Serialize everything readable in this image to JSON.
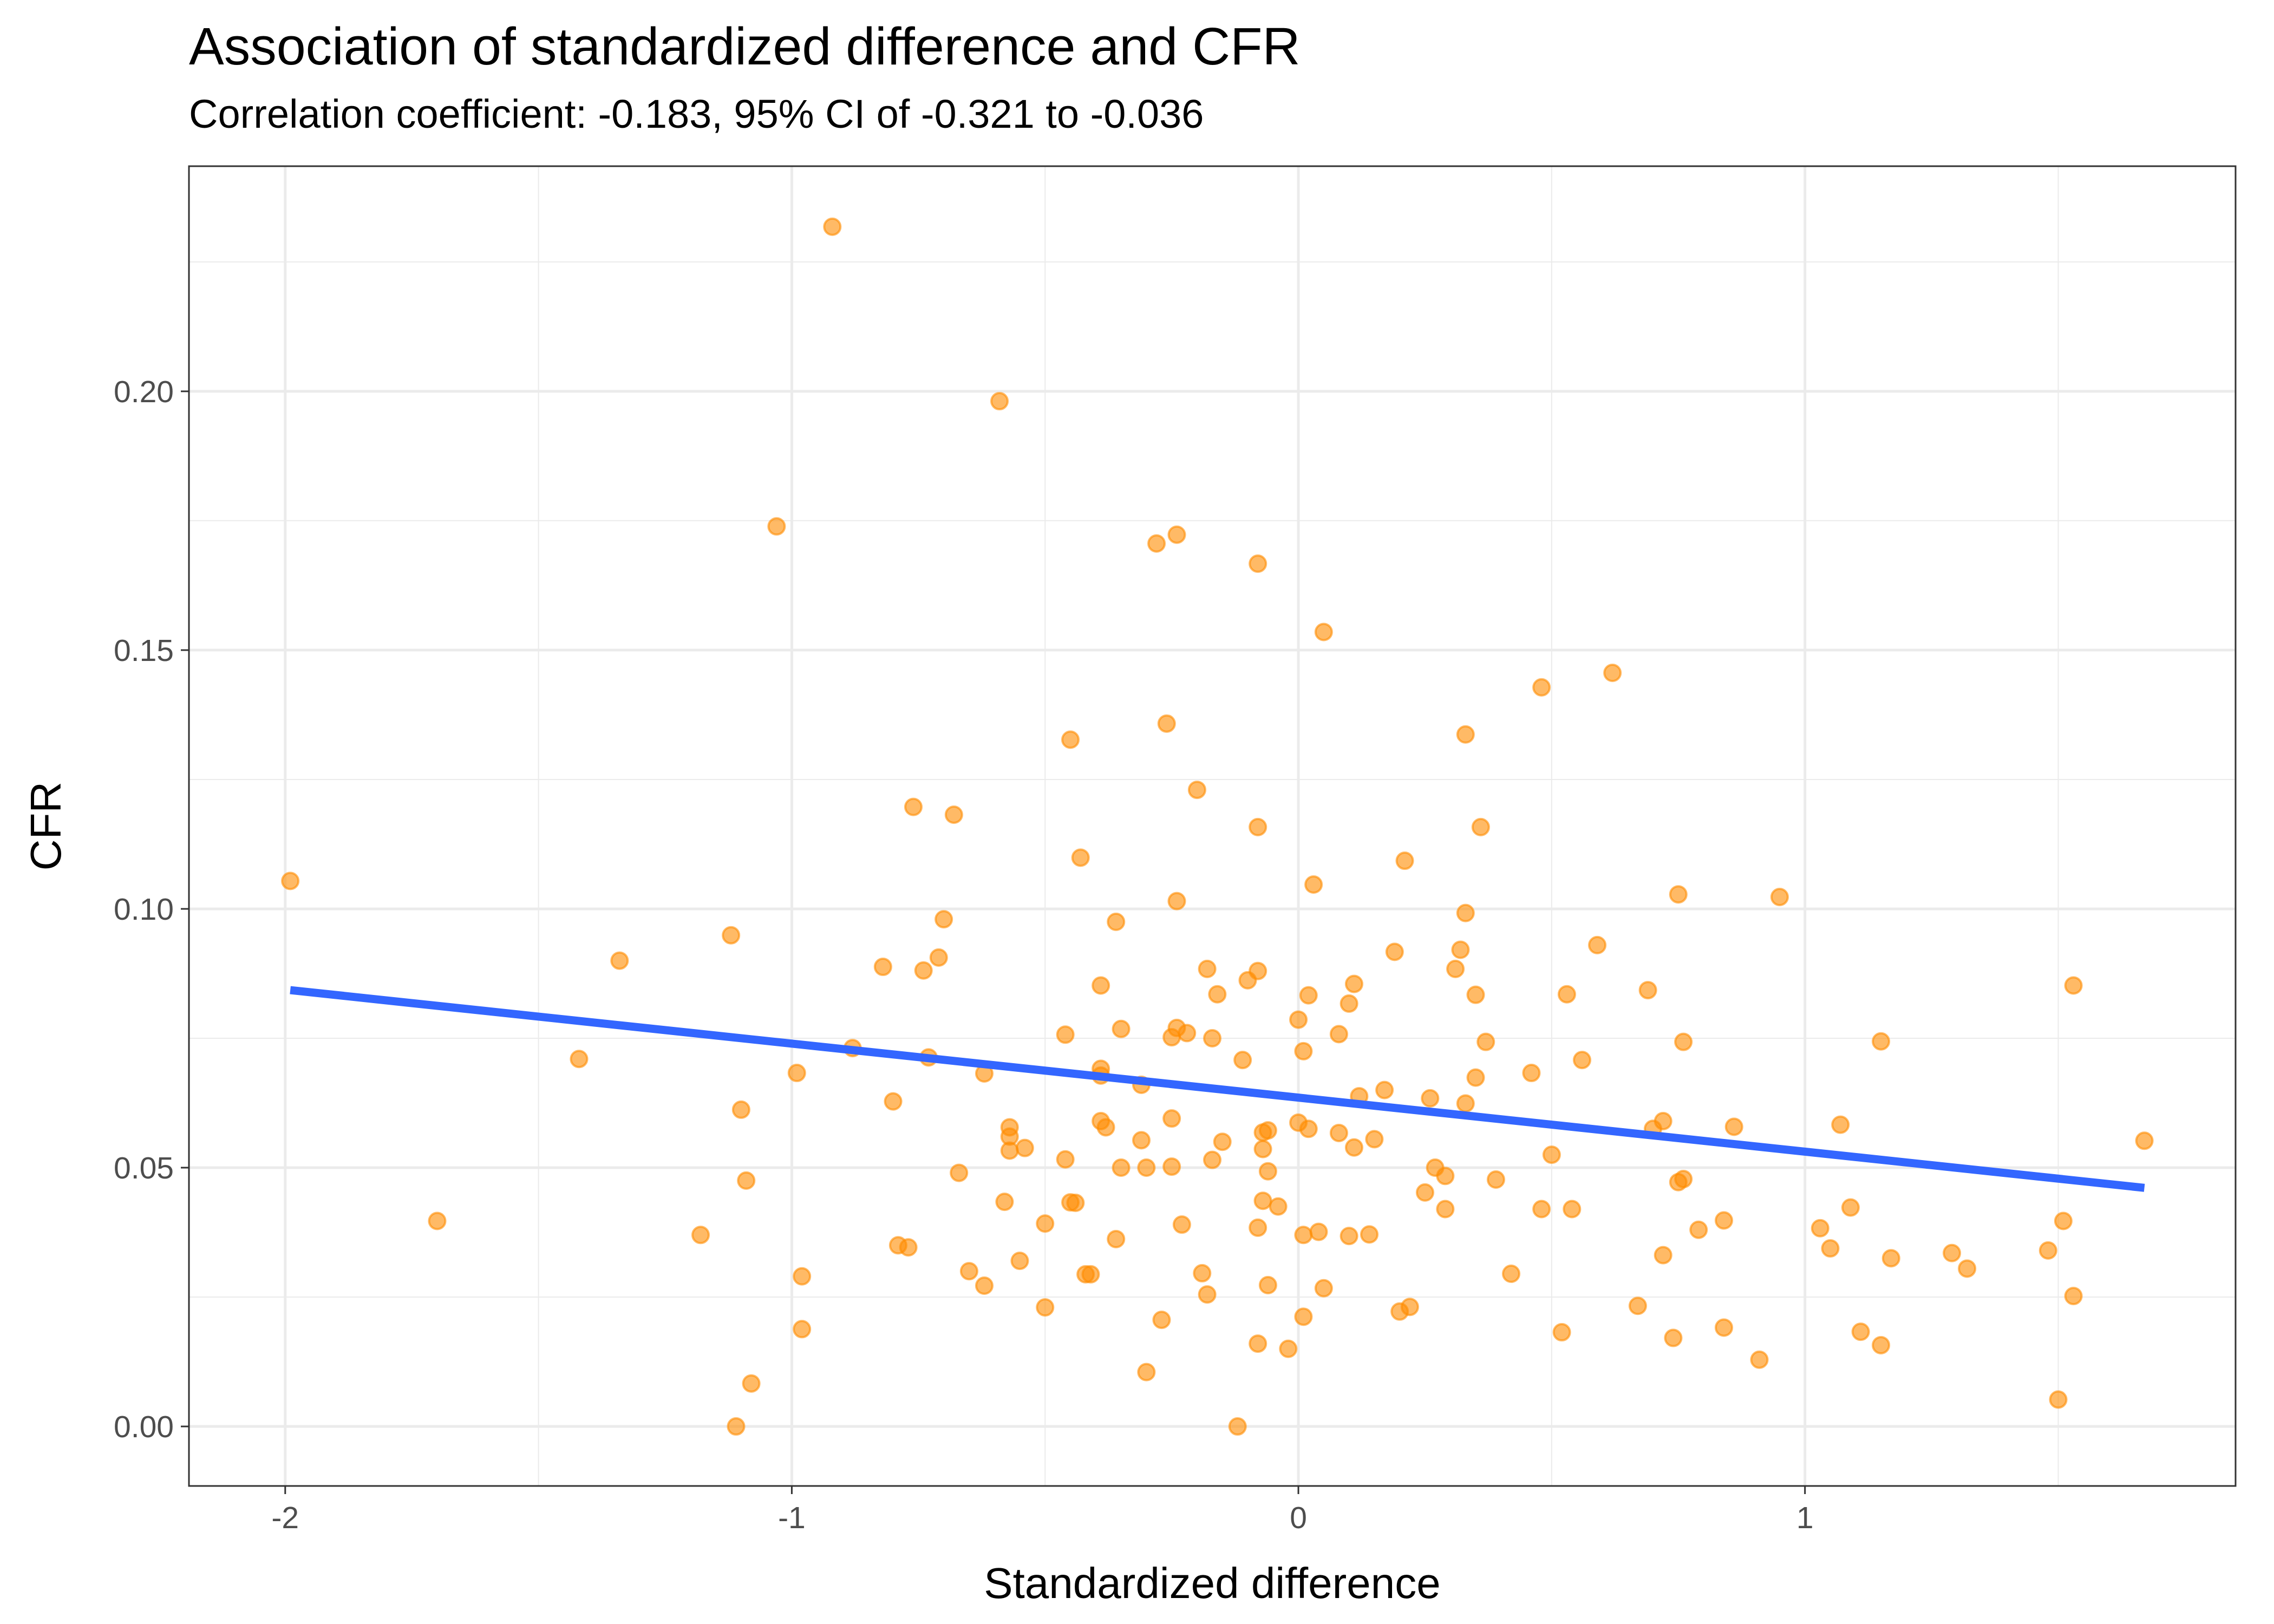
{
  "chart_data": {
    "type": "scatter",
    "title": "Association of standardized difference and CFR",
    "subtitle": "Correlation coefficient: -0.183, 95% CI of -0.321 to -0.036",
    "xlabel": "Standardized difference",
    "ylabel": "CFR",
    "xlim": [
      -2.19,
      1.85
    ],
    "ylim": [
      -0.0115,
      0.2435
    ],
    "x_ticks": [
      -2,
      -1,
      0,
      1
    ],
    "x_tick_labels": [
      "-2",
      "-1",
      "0",
      "1"
    ],
    "y_ticks": [
      0.0,
      0.05,
      0.1,
      0.15,
      0.2
    ],
    "y_tick_labels": [
      "0.00",
      "0.05",
      "0.10",
      "0.15",
      "0.20"
    ],
    "grid": true,
    "point_color": "#FF8C00",
    "line_color": "#3366FF",
    "fit_line": {
      "x": [
        -1.99,
        1.67
      ],
      "y": [
        0.0843,
        0.0461
      ]
    },
    "points": [
      [
        -1.99,
        0.1054
      ],
      [
        -1.7,
        0.0397
      ],
      [
        -1.42,
        0.071
      ],
      [
        -1.34,
        0.09
      ],
      [
        -1.18,
        0.037
      ],
      [
        -1.12,
        0.0949
      ],
      [
        -1.11,
        0.0
      ],
      [
        -1.1,
        0.0612
      ],
      [
        -1.09,
        0.0475
      ],
      [
        -1.08,
        0.0083
      ],
      [
        -1.03,
        0.1739
      ],
      [
        -0.99,
        0.0683
      ],
      [
        -0.98,
        0.029
      ],
      [
        -0.98,
        0.0188
      ],
      [
        -0.92,
        0.2318
      ],
      [
        -0.88,
        0.0731
      ],
      [
        -0.82,
        0.0888
      ],
      [
        -0.8,
        0.0628
      ],
      [
        -0.79,
        0.035
      ],
      [
        -0.77,
        0.0346
      ],
      [
        -0.76,
        0.1197
      ],
      [
        -0.74,
        0.0881
      ],
      [
        -0.73,
        0.0713
      ],
      [
        -0.71,
        0.0906
      ],
      [
        -0.7,
        0.098
      ],
      [
        -0.68,
        0.1182
      ],
      [
        -0.67,
        0.049
      ],
      [
        -0.65,
        0.03
      ],
      [
        -0.62,
        0.0682
      ],
      [
        -0.62,
        0.0272
      ],
      [
        -0.59,
        0.1981
      ],
      [
        -0.58,
        0.0434
      ],
      [
        -0.57,
        0.0578
      ],
      [
        -0.57,
        0.056
      ],
      [
        -0.57,
        0.0533
      ],
      [
        -0.55,
        0.032
      ],
      [
        -0.54,
        0.0538
      ],
      [
        -0.5,
        0.0392
      ],
      [
        -0.5,
        0.023
      ],
      [
        -0.46,
        0.0757
      ],
      [
        -0.46,
        0.0516
      ],
      [
        -0.45,
        0.0433
      ],
      [
        -0.45,
        0.1327
      ],
      [
        -0.44,
        0.0432
      ],
      [
        -0.43,
        0.1099
      ],
      [
        -0.42,
        0.0294
      ],
      [
        -0.41,
        0.0294
      ],
      [
        -0.39,
        0.0852
      ],
      [
        -0.39,
        0.059
      ],
      [
        -0.39,
        0.0691
      ],
      [
        -0.39,
        0.0678
      ],
      [
        -0.38,
        0.0578
      ],
      [
        -0.36,
        0.0975
      ],
      [
        -0.36,
        0.0362
      ],
      [
        -0.35,
        0.05
      ],
      [
        -0.35,
        0.0768
      ],
      [
        -0.31,
        0.066
      ],
      [
        -0.31,
        0.0553
      ],
      [
        -0.3,
        0.05
      ],
      [
        -0.3,
        0.0105
      ],
      [
        -0.28,
        0.1706
      ],
      [
        -0.27,
        0.0206
      ],
      [
        -0.26,
        0.1358
      ],
      [
        -0.25,
        0.0752
      ],
      [
        -0.25,
        0.0502
      ],
      [
        -0.25,
        0.0595
      ],
      [
        -0.24,
        0.1723
      ],
      [
        -0.24,
        0.077
      ],
      [
        -0.24,
        0.1015
      ],
      [
        -0.23,
        0.039
      ],
      [
        -0.22,
        0.076
      ],
      [
        -0.2,
        0.123
      ],
      [
        -0.19,
        0.0296
      ],
      [
        -0.18,
        0.0884
      ],
      [
        -0.18,
        0.0255
      ],
      [
        -0.17,
        0.075
      ],
      [
        -0.17,
        0.0515
      ],
      [
        -0.16,
        0.0835
      ],
      [
        -0.15,
        0.055
      ],
      [
        -0.12,
        0.0
      ],
      [
        -0.11,
        0.0708
      ],
      [
        -0.1,
        0.0862
      ],
      [
        -0.08,
        0.1667
      ],
      [
        -0.08,
        0.1158
      ],
      [
        -0.08,
        0.088
      ],
      [
        -0.08,
        0.0384
      ],
      [
        -0.08,
        0.016
      ],
      [
        -0.07,
        0.0568
      ],
      [
        -0.07,
        0.0536
      ],
      [
        -0.07,
        0.0436
      ],
      [
        -0.06,
        0.0273
      ],
      [
        -0.06,
        0.0572
      ],
      [
        -0.06,
        0.0493
      ],
      [
        -0.04,
        0.0425
      ],
      [
        -0.02,
        0.015
      ],
      [
        0.01,
        0.0725
      ],
      [
        0.0,
        0.0786
      ],
      [
        0.0,
        0.0587
      ],
      [
        0.01,
        0.037
      ],
      [
        0.01,
        0.0212
      ],
      [
        0.02,
        0.0833
      ],
      [
        0.02,
        0.0575
      ],
      [
        0.03,
        0.1047
      ],
      [
        0.04,
        0.0376
      ],
      [
        0.05,
        0.1535
      ],
      [
        0.05,
        0.0267
      ],
      [
        0.08,
        0.0758
      ],
      [
        0.08,
        0.0567
      ],
      [
        0.1,
        0.0368
      ],
      [
        0.1,
        0.0817
      ],
      [
        0.11,
        0.0539
      ],
      [
        0.11,
        0.0855
      ],
      [
        0.12,
        0.0638
      ],
      [
        0.14,
        0.0371
      ],
      [
        0.15,
        0.0555
      ],
      [
        0.17,
        0.065
      ],
      [
        0.19,
        0.0917
      ],
      [
        0.2,
        0.0222
      ],
      [
        0.21,
        0.1093
      ],
      [
        0.22,
        0.0231
      ],
      [
        0.25,
        0.0452
      ],
      [
        0.26,
        0.0634
      ],
      [
        0.27,
        0.05
      ],
      [
        0.29,
        0.0484
      ],
      [
        0.29,
        0.042
      ],
      [
        0.31,
        0.0884
      ],
      [
        0.32,
        0.0921
      ],
      [
        0.33,
        0.0992
      ],
      [
        0.33,
        0.1337
      ],
      [
        0.33,
        0.0624
      ],
      [
        0.35,
        0.0834
      ],
      [
        0.35,
        0.0674
      ],
      [
        0.36,
        0.1158
      ],
      [
        0.37,
        0.0743
      ],
      [
        0.39,
        0.0477
      ],
      [
        0.42,
        0.0295
      ],
      [
        0.46,
        0.0683
      ],
      [
        0.48,
        0.042
      ],
      [
        0.48,
        0.1428
      ],
      [
        0.5,
        0.0525
      ],
      [
        0.52,
        0.0182
      ],
      [
        0.53,
        0.0835
      ],
      [
        0.54,
        0.042
      ],
      [
        0.56,
        0.0708
      ],
      [
        0.59,
        0.093
      ],
      [
        0.62,
        0.1456
      ],
      [
        0.67,
        0.0233
      ],
      [
        0.69,
        0.0843
      ],
      [
        0.7,
        0.0575
      ],
      [
        0.72,
        0.059
      ],
      [
        0.72,
        0.0331
      ],
      [
        0.74,
        0.0171
      ],
      [
        0.75,
        0.1028
      ],
      [
        0.75,
        0.0472
      ],
      [
        0.76,
        0.0743
      ],
      [
        0.76,
        0.0478
      ],
      [
        0.79,
        0.038
      ],
      [
        0.84,
        0.0398
      ],
      [
        0.84,
        0.0191
      ],
      [
        0.86,
        0.0579
      ],
      [
        0.91,
        0.0129
      ],
      [
        0.95,
        0.1023
      ],
      [
        1.03,
        0.0383
      ],
      [
        1.05,
        0.0344
      ],
      [
        1.07,
        0.0583
      ],
      [
        1.09,
        0.0423
      ],
      [
        1.11,
        0.0183
      ],
      [
        1.15,
        0.0157
      ],
      [
        1.15,
        0.0744
      ],
      [
        1.17,
        0.0325
      ],
      [
        1.29,
        0.0335
      ],
      [
        1.32,
        0.0305
      ],
      [
        1.48,
        0.034
      ],
      [
        1.5,
        0.0052
      ],
      [
        1.51,
        0.0397
      ],
      [
        1.53,
        0.0252
      ],
      [
        1.53,
        0.0852
      ],
      [
        1.67,
        0.0552
      ]
    ]
  }
}
